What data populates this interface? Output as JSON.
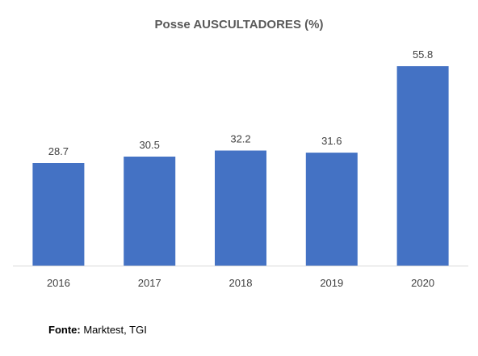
{
  "chart_data": {
    "type": "bar",
    "title": "Posse AUSCULTADORES (%)",
    "xlabel": "",
    "ylabel": "",
    "categories": [
      "2016",
      "2017",
      "2018",
      "2019",
      "2020"
    ],
    "values": [
      28.7,
      30.5,
      32.2,
      31.6,
      55.8
    ],
    "data_labels": [
      "28.7",
      "30.5",
      "32.2",
      "31.6",
      "55.8"
    ],
    "ylim": [
      0,
      57
    ],
    "grid": false,
    "legend": "none",
    "bar_color": "#4472C4",
    "axis_color": "#D9D9D9",
    "label_color": "#404040"
  },
  "footer": {
    "source_label": "Fonte:",
    "source_text": " Marktest, TGI"
  }
}
